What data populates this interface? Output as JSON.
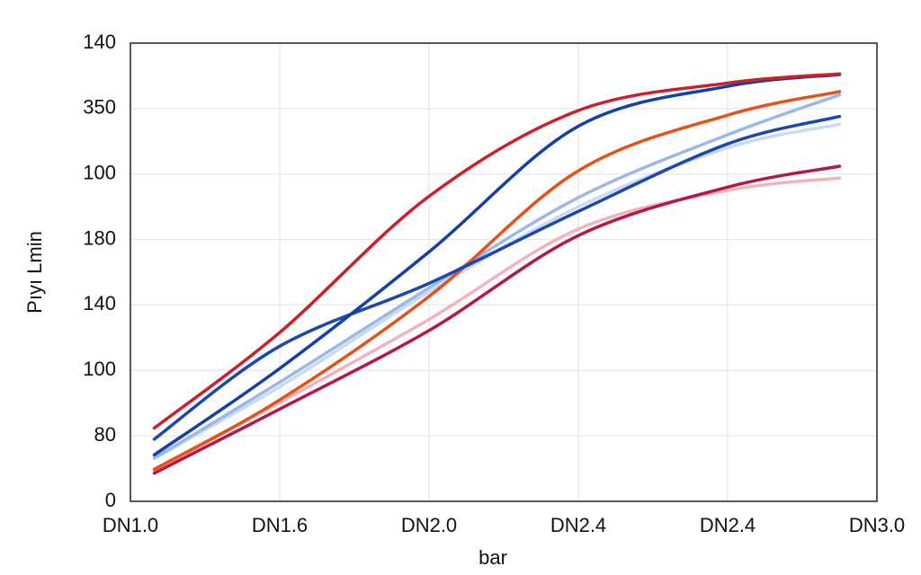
{
  "chart_data": {
    "type": "line",
    "xlabel": "bar",
    "ylabel": "Pıyı Lmin",
    "x": [
      0.16,
      1,
      2,
      3,
      4,
      4.75
    ],
    "xlim": [
      0,
      5
    ],
    "xticks": [
      {
        "value": 0,
        "label": "DN1.0"
      },
      {
        "value": 1,
        "label": "DN1.6"
      },
      {
        "value": 2,
        "label": "DN2.0"
      },
      {
        "value": 3,
        "label": "DN2.4"
      },
      {
        "value": 4,
        "label": "DN2.4"
      },
      {
        "value": 5,
        "label": "DN3.0"
      }
    ],
    "ylim": [
      0,
      7
    ],
    "yticks": [
      0,
      {
        "value": 1,
        "label": "80"
      },
      {
        "value": 2,
        "label": "100"
      },
      {
        "value": 3,
        "label": "140"
      },
      {
        "value": 4,
        "label": "180"
      },
      {
        "value": 5,
        "label": "100"
      },
      {
        "value": 6,
        "label": "350"
      },
      {
        "value": 7,
        "label": "140"
      }
    ],
    "grid": true,
    "series": [
      {
        "color": "#f1b4bc",
        "values": [
          0.47,
          1.51,
          2.78,
          4.16,
          4.75,
          4.94
        ]
      },
      {
        "color": "#c9daf2",
        "values": [
          0.66,
          1.75,
          3.2,
          4.5,
          5.4,
          5.76
        ]
      },
      {
        "color": "#9bb8e6",
        "values": [
          0.66,
          1.82,
          3.26,
          4.64,
          5.6,
          6.21
        ]
      },
      {
        "color": "#b5174a",
        "values": [
          0.43,
          1.41,
          2.61,
          4.06,
          4.8,
          5.12
        ]
      },
      {
        "color": "#e8501a",
        "values": [
          0.49,
          1.55,
          3.13,
          5.05,
          5.9,
          6.26
        ]
      },
      {
        "color": "#1a48b0",
        "values": [
          0.95,
          2.37,
          3.33,
          4.43,
          5.46,
          5.88
        ]
      },
      {
        "color": "#1240a8",
        "values": [
          0.71,
          2.03,
          3.81,
          5.73,
          6.34,
          6.52
        ]
      },
      {
        "color": "#cc1f2a",
        "values": [
          1.12,
          2.58,
          4.66,
          5.97,
          6.39,
          6.53
        ]
      }
    ]
  }
}
